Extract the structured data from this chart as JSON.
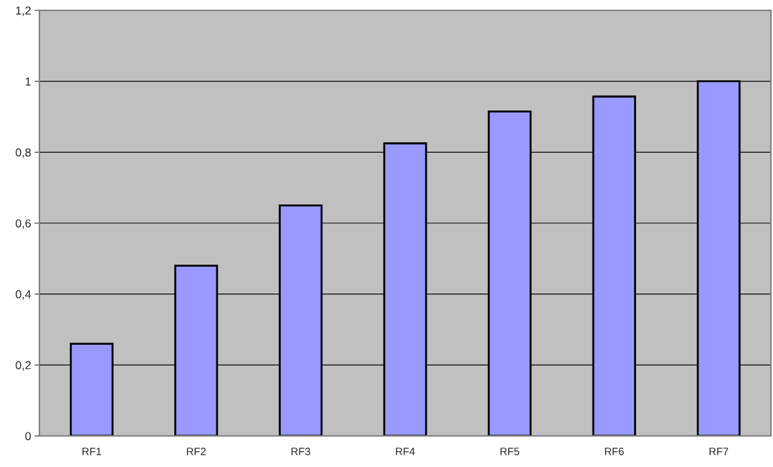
{
  "chart_data": {
    "type": "bar",
    "categories": [
      "RF1",
      "RF2",
      "RF3",
      "RF4",
      "RF5",
      "RF6",
      "RF7"
    ],
    "values": [
      0.26,
      0.48,
      0.65,
      0.825,
      0.915,
      0.957,
      1.0
    ],
    "color": "#9999ff",
    "ylim": [
      0,
      1.2
    ],
    "yticks": [
      0,
      {
        "value": 0.2,
        "label": "0,2"
      },
      {
        "value": 0.4,
        "label": "0,4"
      },
      {
        "value": 0.6,
        "label": "0,6"
      },
      {
        "value": 0.8,
        "label": "0,8"
      },
      1,
      {
        "value": 1.2,
        "label": "1,2"
      }
    ],
    "grid": "y",
    "legend": false
  }
}
